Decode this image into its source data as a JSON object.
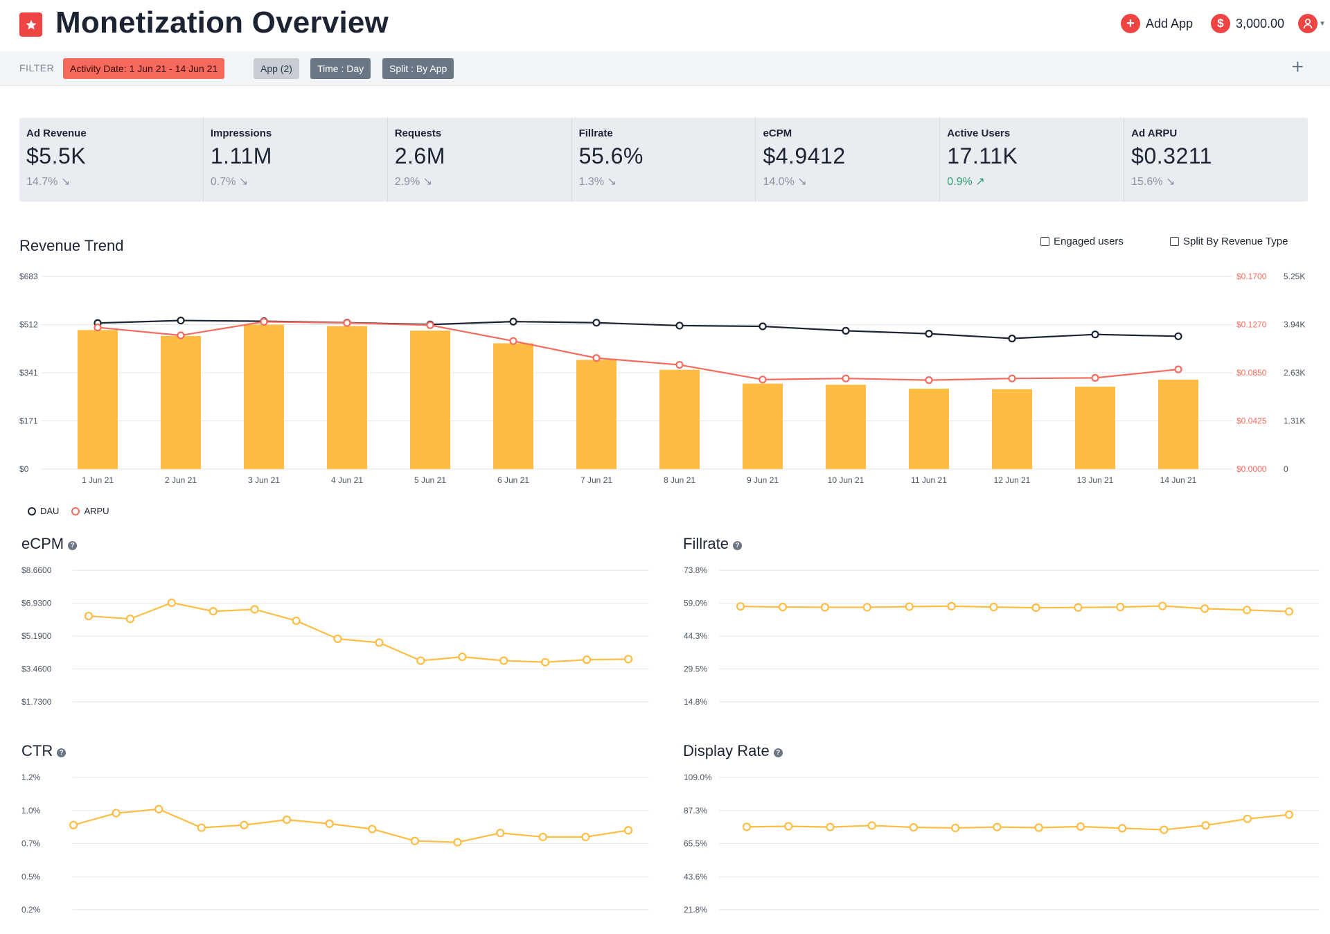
{
  "header": {
    "title": "Monetization Overview",
    "add_app_label": "Add App",
    "balance": "3,000.00",
    "logo_icon": "star-icon",
    "user_icon": "user-avatar-icon"
  },
  "filter": {
    "label": "FILTER",
    "chips": [
      {
        "label": "Activity Date: 1 Jun 21 - 14 Jun 21",
        "style": "red"
      },
      {
        "label": "App (2)",
        "style": "gray"
      },
      {
        "label": "Time : Day",
        "style": "dark"
      },
      {
        "label": "Split : By App",
        "style": "dark"
      }
    ]
  },
  "kpis": [
    {
      "label": "Ad Revenue",
      "value": "$5.5K",
      "change": "14.7%",
      "direction": "down"
    },
    {
      "label": "Impressions",
      "value": "1.11M",
      "change": "0.7%",
      "direction": "down"
    },
    {
      "label": "Requests",
      "value": "2.6M",
      "change": "2.9%",
      "direction": "down"
    },
    {
      "label": "Fillrate",
      "value": "55.6%",
      "change": "1.3%",
      "direction": "down"
    },
    {
      "label": "eCPM",
      "value": "$4.9412",
      "change": "14.0%",
      "direction": "down"
    },
    {
      "label": "Active Users",
      "value": "17.11K",
      "change": "0.9%",
      "direction": "up"
    },
    {
      "label": "Ad ARPU",
      "value": "$0.3211",
      "change": "15.6%",
      "direction": "down"
    }
  ],
  "revenue_trend": {
    "title": "Revenue Trend",
    "options": [
      "Engaged users",
      "Split By Revenue Type"
    ],
    "legend": [
      "DAU",
      "ARPU"
    ]
  },
  "colors": {
    "bar": "#ffbc42",
    "dau": "#1c2434",
    "arpu": "#f66a5e",
    "line": "#ffbc42",
    "grid": "#e3e6ea"
  },
  "chart_data": [
    {
      "type": "bar",
      "title": "Revenue Trend",
      "categories": [
        "1 Jun 21",
        "2 Jun 21",
        "3 Jun 21",
        "4 Jun 21",
        "5 Jun 21",
        "6 Jun 21",
        "7 Jun 21",
        "8 Jun 21",
        "9 Jun 21",
        "10 Jun 21",
        "11 Jun 21",
        "12 Jun 21",
        "13 Jun 21",
        "14 Jun 21"
      ],
      "yticks_left": [
        "$0",
        "$171",
        "$341",
        "$512",
        "$683"
      ],
      "yticks_arpu": [
        "$0.0000",
        "$0.0425",
        "$0.0850",
        "$0.1270",
        "$0.1700"
      ],
      "yticks_dau": [
        "0",
        "1.31K",
        "2.63K",
        "3.94K",
        "5.25K"
      ],
      "ylim": [
        0,
        683
      ],
      "series": [
        {
          "kind": "bar",
          "values": [
            493,
            472,
            512,
            507,
            491,
            446,
            387,
            352,
            303,
            299,
            285,
            283,
            292,
            317
          ]
        },
        {
          "name": "DAU",
          "kind": "line",
          "axis": "dau",
          "ylim": [
            0,
            5250
          ],
          "values": [
            3980,
            4050,
            4030,
            3990,
            3940,
            4020,
            3990,
            3910,
            3890,
            3770,
            3690,
            3560,
            3670,
            3620
          ]
        },
        {
          "name": "ARPU",
          "kind": "line",
          "axis": "arpu",
          "ylim": [
            0,
            0.17
          ],
          "values": [
            0.125,
            0.118,
            0.13,
            0.129,
            0.127,
            0.113,
            0.098,
            0.092,
            0.079,
            0.08,
            0.0785,
            0.08,
            0.0805,
            0.088
          ]
        }
      ]
    },
    {
      "type": "line",
      "title": "eCPM",
      "yticks": [
        "$1.7300",
        "$3.4600",
        "$5.1900",
        "$6.9300",
        "$8.6600"
      ],
      "ylim": [
        1.73,
        8.66
      ],
      "values": [
        6.25,
        6.1,
        6.95,
        6.5,
        6.6,
        6.0,
        5.05,
        4.85,
        3.9,
        4.1,
        3.9,
        3.82,
        3.95,
        3.98
      ]
    },
    {
      "type": "line",
      "title": "Fillrate",
      "yticks": [
        "14.8%",
        "29.5%",
        "44.3%",
        "59.0%",
        "73.8%"
      ],
      "ylim": [
        14.8,
        73.8
      ],
      "values": [
        57.6,
        57.3,
        57.2,
        57.2,
        57.5,
        57.7,
        57.3,
        57.0,
        57.1,
        57.3,
        57.8,
        56.6,
        56.0,
        55.3
      ]
    },
    {
      "type": "line",
      "title": "CTR",
      "yticks": [
        "0.2%",
        "0.5%",
        "0.7%",
        "1.0%",
        "1.2%"
      ],
      "ylim": [
        0.2,
        1.2
      ],
      "values": [
        0.84,
        0.93,
        0.96,
        0.82,
        0.84,
        0.88,
        0.85,
        0.81,
        0.72,
        0.71,
        0.78,
        0.75,
        0.75,
        0.8
      ]
    },
    {
      "type": "line",
      "title": "Display Rate",
      "yticks": [
        "21.8%",
        "43.6%",
        "65.5%",
        "87.3%",
        "109.0%"
      ],
      "ylim": [
        21.8,
        109.0
      ],
      "values": [
        76.4,
        76.8,
        76.3,
        77.3,
        76.1,
        75.7,
        76.3,
        75.9,
        76.6,
        75.5,
        74.5,
        77.4,
        81.7,
        84.5
      ]
    }
  ]
}
